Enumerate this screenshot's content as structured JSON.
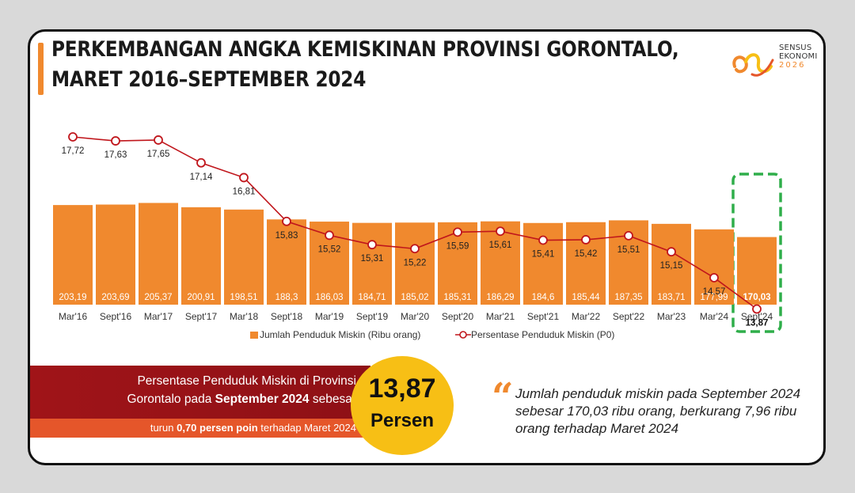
{
  "header": {
    "title_line1": "PERKEMBANGAN ANGKA KEMISKINAN PROVINSI GORONTALO,",
    "title_line2": "MARET 2016–SEPTEMBER 2024"
  },
  "logo": {
    "line1": "SENSUS",
    "line2": "EKONOMI",
    "line3": "2026"
  },
  "colors": {
    "bar": "#f0892e",
    "line": "#c0161c",
    "highlight_border": "#2fae4a",
    "banner_dark": "#a01418",
    "banner_light": "#e5562a",
    "circle": "#f7bf15"
  },
  "chart_data": {
    "type": "bar",
    "categories": [
      "Mar'16",
      "Sept'16",
      "Mar'17",
      "Sept'17",
      "Mar'18",
      "Sept'18",
      "Mar'19",
      "Sept'19",
      "Mar'20",
      "Sept'20",
      "Mar'21",
      "Sept'21",
      "Mar'22",
      "Sept'22",
      "Mar'23",
      "Mar'24",
      "Sept'24"
    ],
    "series": [
      {
        "name": "Jumlah Penduduk Miskin (Ribu orang)",
        "kind": "bar",
        "values": [
          203.19,
          203.69,
          205.37,
          200.91,
          198.51,
          188.3,
          186.03,
          184.71,
          185.02,
          185.31,
          186.29,
          184.6,
          185.44,
          187.35,
          183.71,
          177.99,
          170.03
        ],
        "labels": [
          "203,19",
          "203,69",
          "205,37",
          "200,91",
          "198,51",
          "188,3",
          "186,03",
          "184,71",
          "185,02",
          "185,31",
          "186,29",
          "184,6",
          "185,44",
          "187,35",
          "183,71",
          "177,99",
          "170,03"
        ]
      },
      {
        "name": "Persentase Penduduk Miskin (P0)",
        "kind": "line",
        "values": [
          17.72,
          17.63,
          17.65,
          17.14,
          16.81,
          15.83,
          15.52,
          15.31,
          15.22,
          15.59,
          15.61,
          15.41,
          15.42,
          15.51,
          15.15,
          14.57,
          13.87
        ],
        "labels": [
          "17,72",
          "17,63",
          "17,65",
          "17,14",
          "16,81",
          "15,83",
          "15,52",
          "15,31",
          "15,22",
          "15,59",
          "15,61",
          "15,41",
          "15,42",
          "15,51",
          "15,15",
          "14,57",
          "13,87"
        ]
      }
    ],
    "highlight_index": 16,
    "legend": {
      "bar_label": "Jumlah Penduduk Miskin (Ribu orang)",
      "line_label": "Persentase Penduduk Miskin (P0)",
      "position": "bottom"
    },
    "grid": false
  },
  "summary": {
    "banner_line1": "Persentase Penduduk Miskin di Provinsi",
    "banner_line2_pre": "Gorontalo pada ",
    "banner_line2_bold": "September 2024",
    "banner_line2_post": " sebesar",
    "sub_pre": "turun ",
    "sub_bold": "0,70 persen poin",
    "sub_post": " terhadap Maret 2024",
    "value": "13,87",
    "unit": "Persen"
  },
  "quote": {
    "mark": "“",
    "text": "Jumlah penduduk miskin pada September 2024 sebesar 170,03 ribu orang, berkurang 7,96 ribu orang terhadap Maret 2024"
  }
}
